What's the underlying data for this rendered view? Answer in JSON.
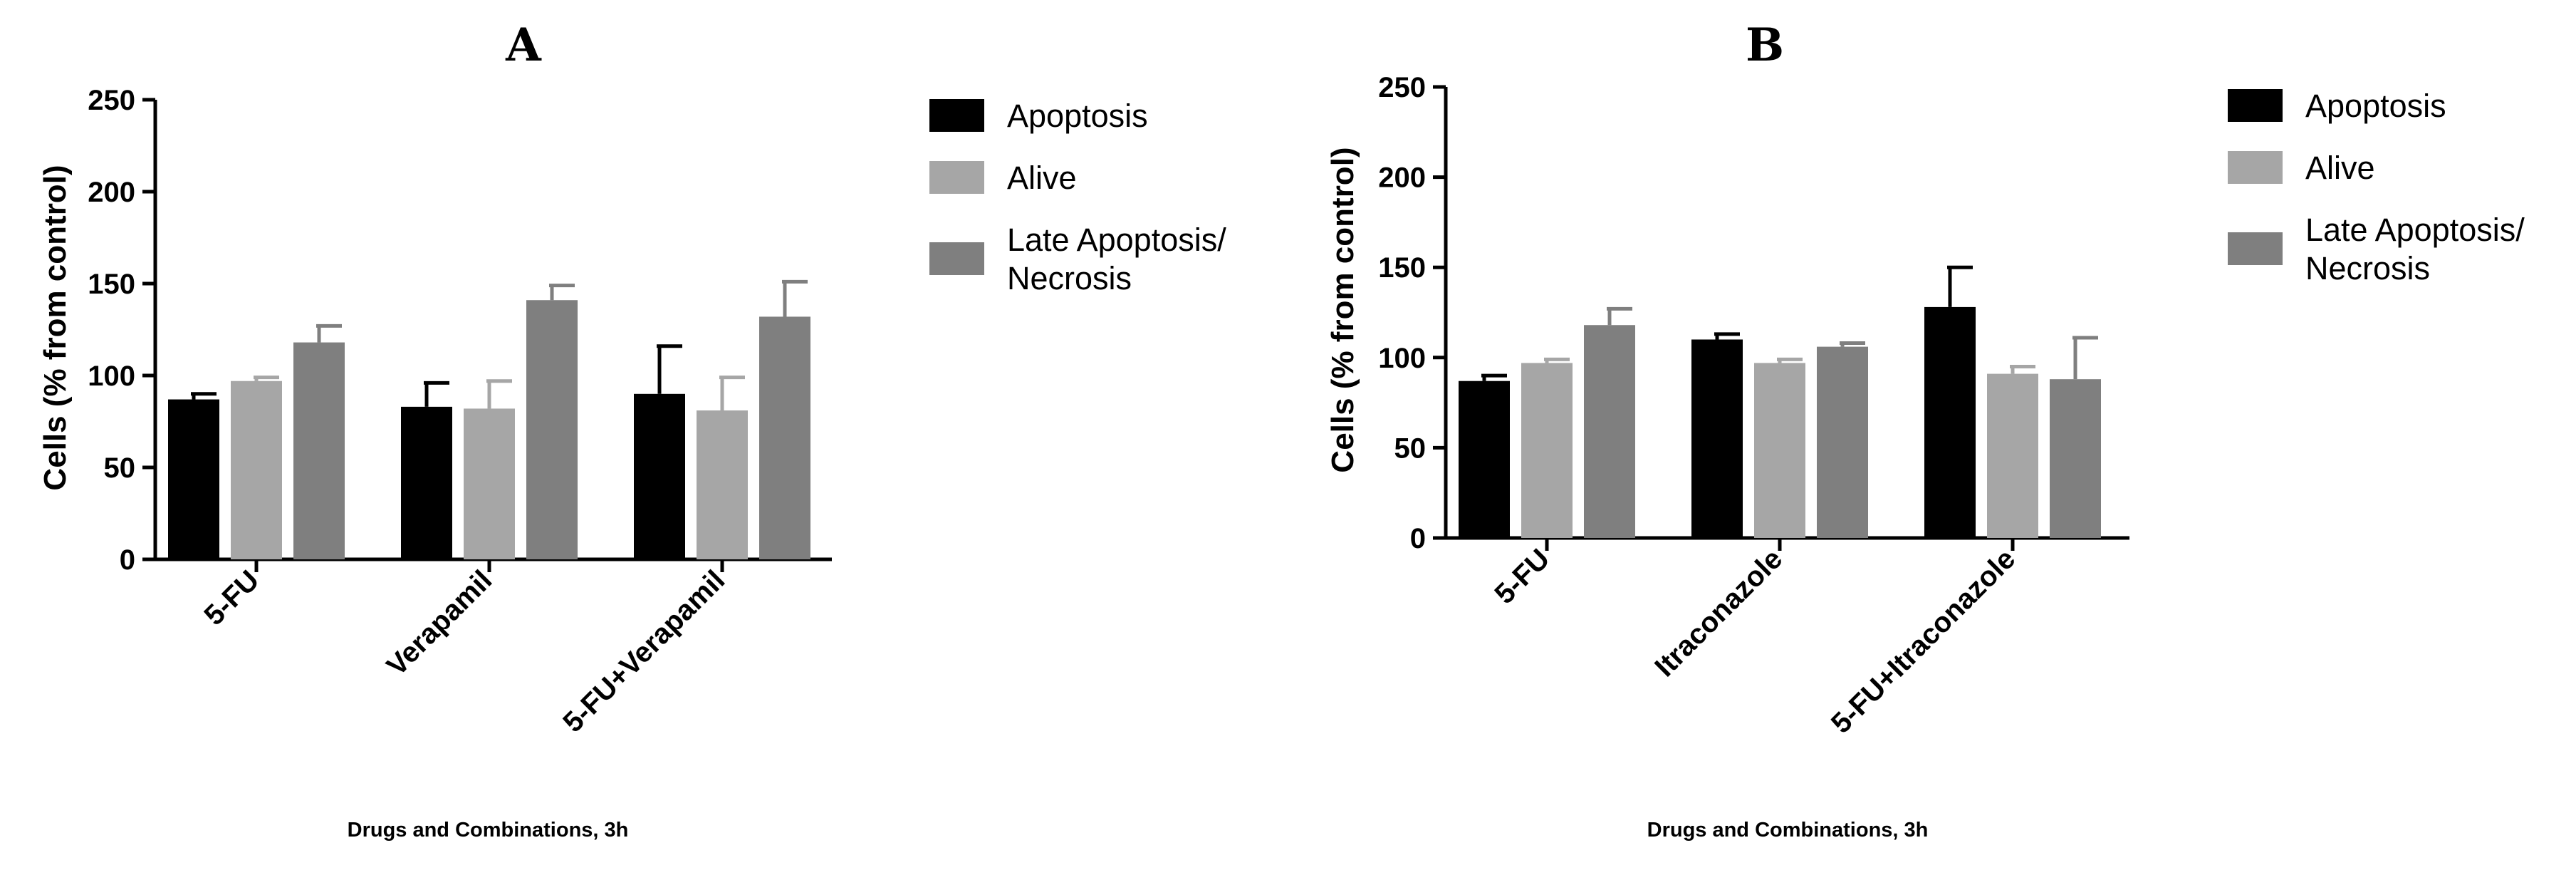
{
  "chart_data": [
    {
      "type": "bar",
      "title": "A",
      "categories": [
        "5-FU",
        "Verapamil",
        "5-FU+Verapamil"
      ],
      "series": [
        {
          "name": "Apoptosis",
          "color": "#000000",
          "values": [
            87,
            83,
            90
          ],
          "errors": [
            3,
            13,
            26
          ]
        },
        {
          "name": "Alive",
          "color": "#a6a6a6",
          "values": [
            97,
            82,
            81
          ],
          "errors": [
            2,
            15,
            18
          ]
        },
        {
          "name": "Late Apoptosis/\nNecrosis",
          "color": "#7f7f7f",
          "values": [
            118,
            141,
            132
          ],
          "errors": [
            9,
            8,
            19
          ]
        }
      ],
      "xlabel": "Drugs and Combinations, 3h",
      "ylabel": "Cells (% from control)",
      "ylim": [
        0,
        250
      ],
      "yticks": [
        0,
        50,
        100,
        150,
        200,
        250
      ],
      "legend_position": "right"
    },
    {
      "type": "bar",
      "title": "B",
      "categories": [
        "5-FU",
        "Itraconazole",
        "5-FU+Itraconazole"
      ],
      "series": [
        {
          "name": "Apoptosis",
          "color": "#000000",
          "values": [
            87,
            110,
            128
          ],
          "errors": [
            3,
            3,
            22
          ]
        },
        {
          "name": "Alive",
          "color": "#a6a6a6",
          "values": [
            97,
            97,
            91
          ],
          "errors": [
            2,
            2,
            4
          ]
        },
        {
          "name": "Late Apoptosis/\nNecrosis",
          "color": "#7f7f7f",
          "values": [
            118,
            106,
            88
          ],
          "errors": [
            9,
            2,
            23
          ]
        }
      ],
      "xlabel": "Drugs and Combinations, 3h",
      "ylabel": "Cells (% from control)",
      "ylim": [
        0,
        250
      ],
      "yticks": [
        0,
        50,
        100,
        150,
        200,
        250
      ],
      "legend_position": "right"
    }
  ]
}
